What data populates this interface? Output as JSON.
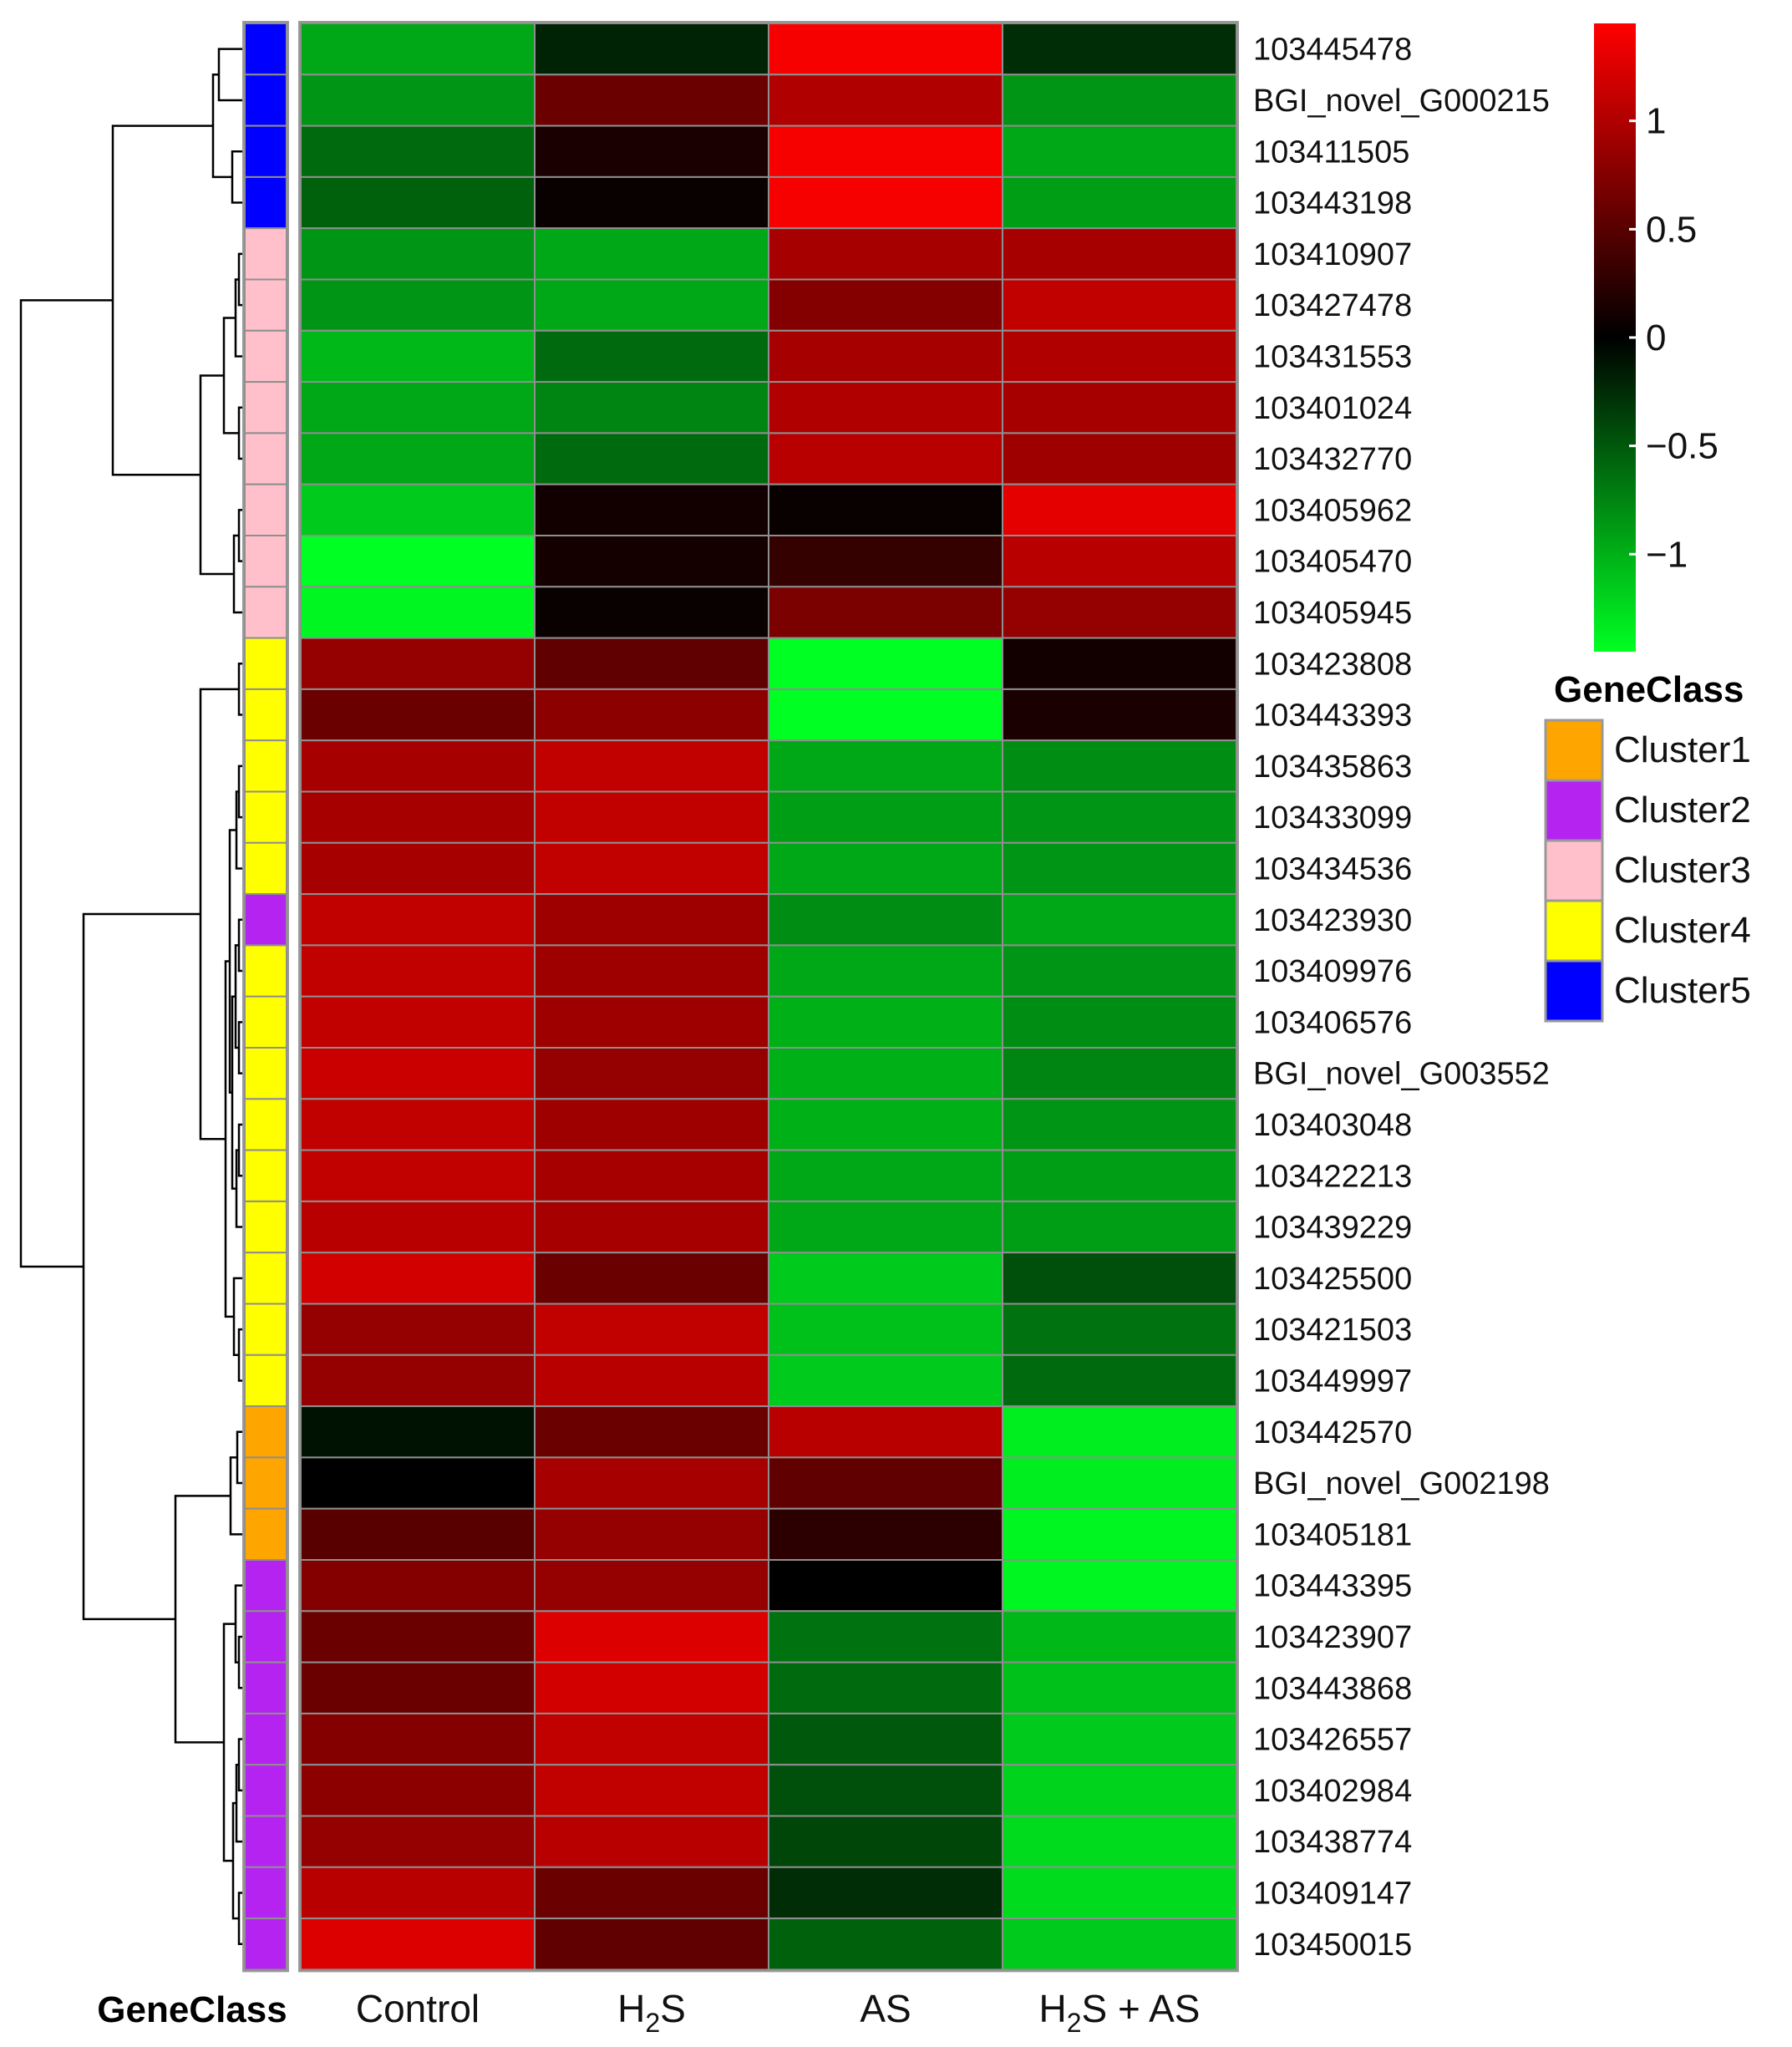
{
  "chart_data": {
    "type": "heatmap",
    "title": "",
    "columns": [
      "Control",
      "H2S",
      "AS",
      "H2S + AS"
    ],
    "column_labels": [
      {
        "main": "Control",
        "sub": "",
        "tail": ""
      },
      {
        "main": "H",
        "sub": "2",
        "tail": "S"
      },
      {
        "main": "AS",
        "sub": "",
        "tail": ""
      },
      {
        "main": "H",
        "sub": "2",
        "tail": "S + AS"
      }
    ],
    "row_annotation_label": "GeneClass",
    "colorbar": {
      "range": [
        -1.45,
        1.45
      ],
      "ticks": [
        1,
        0.5,
        0,
        -0.5,
        -1
      ],
      "tick_labels": [
        "1",
        "0.5",
        "0",
        "−0.5",
        "−1"
      ],
      "low_color": "#00ff22",
      "mid_color": "#000000",
      "high_color": "#ff0000"
    },
    "legend": {
      "title": "GeneClass",
      "items": [
        {
          "name": "Cluster1",
          "color": "#ffa500"
        },
        {
          "name": "Cluster2",
          "color": "#b423f0"
        },
        {
          "name": "Cluster3",
          "color": "#ffc0cb"
        },
        {
          "name": "Cluster4",
          "color": "#ffff00"
        },
        {
          "name": "Cluster5",
          "color": "#0000ff"
        }
      ]
    },
    "class_colors": {
      "Cluster1": "#ffa500",
      "Cluster2": "#b423f0",
      "Cluster3": "#ffc0cb",
      "Cluster4": "#ffff00",
      "Cluster5": "#0000ff"
    },
    "rows": [
      {
        "gene": "103445478",
        "cluster": "Cluster5",
        "values": [
          -0.95,
          -0.2,
          1.4,
          -0.25
        ]
      },
      {
        "gene": "BGI_novel_G000215",
        "cluster": "Cluster5",
        "values": [
          -0.85,
          0.6,
          1.0,
          -0.85
        ]
      },
      {
        "gene": "103411505",
        "cluster": "Cluster5",
        "values": [
          -0.6,
          0.15,
          1.4,
          -0.95
        ]
      },
      {
        "gene": "103443198",
        "cluster": "Cluster5",
        "values": [
          -0.55,
          0.05,
          1.4,
          -0.9
        ]
      },
      {
        "gene": "103410907",
        "cluster": "Cluster3",
        "values": [
          -0.85,
          -0.95,
          0.95,
          0.95
        ]
      },
      {
        "gene": "103427478",
        "cluster": "Cluster3",
        "values": [
          -0.85,
          -0.95,
          0.75,
          1.1
        ]
      },
      {
        "gene": "103431553",
        "cluster": "Cluster3",
        "values": [
          -1.05,
          -0.6,
          0.95,
          1.0
        ]
      },
      {
        "gene": "103401024",
        "cluster": "Cluster3",
        "values": [
          -0.95,
          -0.75,
          1.0,
          0.95
        ]
      },
      {
        "gene": "103432770",
        "cluster": "Cluster3",
        "values": [
          -0.95,
          -0.6,
          1.05,
          0.9
        ]
      },
      {
        "gene": "103405962",
        "cluster": "Cluster3",
        "values": [
          -1.15,
          0.1,
          0.05,
          1.3
        ]
      },
      {
        "gene": "103405470",
        "cluster": "Cluster3",
        "values": [
          -1.45,
          0.12,
          0.3,
          1.05
        ]
      },
      {
        "gene": "103405945",
        "cluster": "Cluster3",
        "values": [
          -1.4,
          0.05,
          0.7,
          0.85
        ]
      },
      {
        "gene": "103423808",
        "cluster": "Cluster4",
        "values": [
          0.85,
          0.55,
          -1.45,
          0.1
        ]
      },
      {
        "gene": "103443393",
        "cluster": "Cluster4",
        "values": [
          0.6,
          0.8,
          -1.45,
          0.15
        ]
      },
      {
        "gene": "103435863",
        "cluster": "Cluster4",
        "values": [
          0.95,
          1.1,
          -0.95,
          -0.8
        ]
      },
      {
        "gene": "103433099",
        "cluster": "Cluster4",
        "values": [
          0.95,
          1.1,
          -0.9,
          -0.85
        ]
      },
      {
        "gene": "103434536",
        "cluster": "Cluster4",
        "values": [
          0.95,
          1.1,
          -0.95,
          -0.85
        ]
      },
      {
        "gene": "103423930",
        "cluster": "Cluster2",
        "values": [
          1.1,
          0.9,
          -0.8,
          -0.95
        ]
      },
      {
        "gene": "103409976",
        "cluster": "Cluster4",
        "values": [
          1.1,
          0.9,
          -0.95,
          -0.85
        ]
      },
      {
        "gene": "103406576",
        "cluster": "Cluster4",
        "values": [
          1.1,
          0.9,
          -1.0,
          -0.8
        ]
      },
      {
        "gene": "BGI_novel_G003552",
        "cluster": "Cluster4",
        "values": [
          1.15,
          0.85,
          -1.0,
          -0.75
        ]
      },
      {
        "gene": "103403048",
        "cluster": "Cluster4",
        "values": [
          1.1,
          0.9,
          -1.0,
          -0.85
        ]
      },
      {
        "gene": "103422213",
        "cluster": "Cluster4",
        "values": [
          1.1,
          0.95,
          -0.95,
          -0.9
        ]
      },
      {
        "gene": "103439229",
        "cluster": "Cluster4",
        "values": [
          1.05,
          0.95,
          -0.95,
          -0.9
        ]
      },
      {
        "gene": "103425500",
        "cluster": "Cluster4",
        "values": [
          1.2,
          0.6,
          -1.15,
          -0.45
        ]
      },
      {
        "gene": "103421503",
        "cluster": "Cluster4",
        "values": [
          0.85,
          1.1,
          -1.1,
          -0.65
        ]
      },
      {
        "gene": "103449997",
        "cluster": "Cluster4",
        "values": [
          0.85,
          1.05,
          -1.15,
          -0.6
        ]
      },
      {
        "gene": "103442570",
        "cluster": "Cluster1",
        "values": [
          -0.1,
          0.6,
          1.05,
          -1.35
        ]
      },
      {
        "gene": "BGI_novel_G002198",
        "cluster": "Cluster1",
        "values": [
          0.0,
          0.95,
          0.55,
          -1.35
        ]
      },
      {
        "gene": "103405181",
        "cluster": "Cluster1",
        "values": [
          0.5,
          0.85,
          0.25,
          -1.4
        ]
      },
      {
        "gene": "103443395",
        "cluster": "Cluster2",
        "values": [
          0.75,
          0.85,
          0.0,
          -1.4
        ]
      },
      {
        "gene": "103423907",
        "cluster": "Cluster2",
        "values": [
          0.6,
          1.25,
          -0.65,
          -1.05
        ]
      },
      {
        "gene": "103443868",
        "cluster": "Cluster2",
        "values": [
          0.6,
          1.2,
          -0.6,
          -1.1
        ]
      },
      {
        "gene": "103426557",
        "cluster": "Cluster2",
        "values": [
          0.75,
          1.1,
          -0.5,
          -1.15
        ]
      },
      {
        "gene": "103402984",
        "cluster": "Cluster2",
        "values": [
          0.8,
          1.1,
          -0.45,
          -1.2
        ]
      },
      {
        "gene": "103438774",
        "cluster": "Cluster2",
        "values": [
          0.85,
          1.05,
          -0.4,
          -1.25
        ]
      },
      {
        "gene": "103409147",
        "cluster": "Cluster2",
        "values": [
          1.05,
          0.6,
          -0.25,
          -1.25
        ]
      },
      {
        "gene": "103450015",
        "cluster": "Cluster2",
        "values": [
          1.25,
          0.55,
          -0.55,
          -1.15
        ]
      }
    ]
  }
}
